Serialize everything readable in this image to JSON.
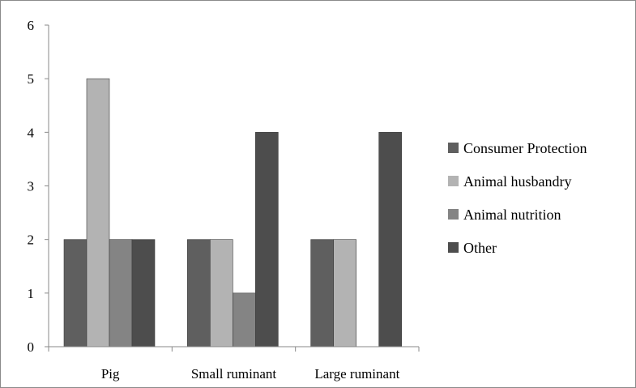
{
  "chart_data": {
    "type": "bar",
    "categories": [
      "Pig",
      "Small ruminant",
      "Large ruminant"
    ],
    "series": [
      {
        "name": "Consumer Protection",
        "values": [
          2,
          2,
          2
        ],
        "color": "#5f5f5f"
      },
      {
        "name": "Animal husbandry",
        "values": [
          5,
          2,
          2
        ],
        "color": "#b3b3b3"
      },
      {
        "name": "Animal nutrition",
        "values": [
          2,
          1,
          0
        ],
        "color": "#848484"
      },
      {
        "name": "Other",
        "values": [
          2,
          4,
          4
        ],
        "color": "#4d4d4d"
      }
    ],
    "ylim": [
      0,
      6
    ],
    "yticks": [
      "0",
      "1",
      "2",
      "3",
      "4",
      "5",
      "6"
    ],
    "grid": false,
    "legend_position": "right"
  }
}
